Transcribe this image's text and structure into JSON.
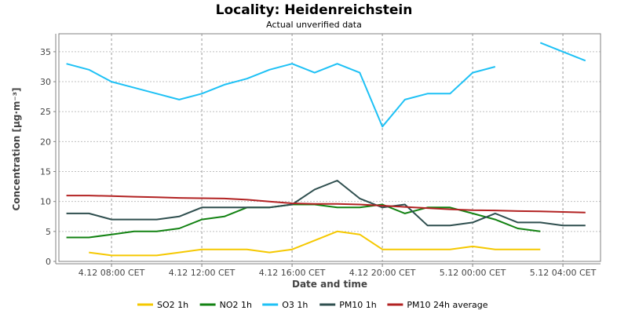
{
  "chart_data": {
    "type": "line",
    "title": "Locality: Heidenreichstein",
    "subtitle": "Actual unverified data",
    "xlabel": "Date and time",
    "ylabel": "Concentration [μg·m⁻³]",
    "ylim": [
      0,
      38
    ],
    "yticks": [
      0,
      5,
      10,
      15,
      20,
      25,
      30,
      35
    ],
    "xlim": [
      "4.12 05:40",
      "5.12 05:40"
    ],
    "xticks": [
      {
        "time": "4.12 08:00",
        "label": "4.12 08:00 CET"
      },
      {
        "time": "4.12 12:00",
        "label": "4.12 12:00 CET"
      },
      {
        "time": "4.12 16:00",
        "label": "4.12 16:00 CET"
      },
      {
        "time": "4.12 20:00",
        "label": "4.12 20:00 CET"
      },
      {
        "time": "5.12 00:00",
        "label": "5.12 00:00 CET"
      },
      {
        "time": "5.12 04:00",
        "label": "5.12 04:00 CET"
      }
    ],
    "grid": true,
    "legend_position": "bottom",
    "series": [
      {
        "name": "SO2 1h",
        "color": "#f5c800",
        "points": [
          {
            "x": "4.12 07:00",
            "y": 1.5
          },
          {
            "x": "4.12 08:00",
            "y": 1.0
          },
          {
            "x": "4.12 09:00",
            "y": 1.0
          },
          {
            "x": "4.12 10:00",
            "y": 1.0
          },
          {
            "x": "4.12 11:00",
            "y": 1.5
          },
          {
            "x": "4.12 12:00",
            "y": 2.0
          },
          {
            "x": "4.12 13:00",
            "y": 2.0
          },
          {
            "x": "4.12 14:00",
            "y": 2.0
          },
          {
            "x": "4.12 15:00",
            "y": 1.5
          },
          {
            "x": "4.12 16:00",
            "y": 2.0
          },
          {
            "x": "4.12 17:00",
            "y": 3.5
          },
          {
            "x": "4.12 18:00",
            "y": 5.0
          },
          {
            "x": "4.12 19:00",
            "y": 4.5
          },
          {
            "x": "4.12 20:00",
            "y": 2.0
          },
          {
            "x": "4.12 21:00",
            "y": 2.0
          },
          {
            "x": "4.12 22:00",
            "y": 2.0
          },
          {
            "x": "4.12 23:00",
            "y": 2.0
          },
          {
            "x": "5.12 00:00",
            "y": 2.5
          },
          {
            "x": "5.12 01:00",
            "y": 2.0
          },
          {
            "x": "5.12 02:00",
            "y": 2.0
          },
          {
            "x": "5.12 03:00",
            "y": 2.0
          }
        ]
      },
      {
        "name": "NO2 1h",
        "color": "#128212",
        "points": [
          {
            "x": "4.12 06:00",
            "y": 4.0
          },
          {
            "x": "4.12 07:00",
            "y": 4.0
          },
          {
            "x": "4.12 08:00",
            "y": 4.5
          },
          {
            "x": "4.12 09:00",
            "y": 5.0
          },
          {
            "x": "4.12 10:00",
            "y": 5.0
          },
          {
            "x": "4.12 11:00",
            "y": 5.5
          },
          {
            "x": "4.12 12:00",
            "y": 7.0
          },
          {
            "x": "4.12 13:00",
            "y": 7.5
          },
          {
            "x": "4.12 14:00",
            "y": 9.0
          },
          {
            "x": "4.12 15:00",
            "y": 9.0
          },
          {
            "x": "4.12 16:00",
            "y": 9.5
          },
          {
            "x": "4.12 17:00",
            "y": 9.5
          },
          {
            "x": "4.12 18:00",
            "y": 9.0
          },
          {
            "x": "4.12 19:00",
            "y": 9.0
          },
          {
            "x": "4.12 20:00",
            "y": 9.5
          },
          {
            "x": "4.12 21:00",
            "y": 8.0
          },
          {
            "x": "4.12 22:00",
            "y": 9.0
          },
          {
            "x": "4.12 23:00",
            "y": 9.0
          },
          {
            "x": "5.12 00:00",
            "y": 8.0
          },
          {
            "x": "5.12 01:00",
            "y": 7.0
          },
          {
            "x": "5.12 02:00",
            "y": 5.5
          },
          {
            "x": "5.12 03:00",
            "y": 5.0
          }
        ]
      },
      {
        "name": "O3 1h",
        "color": "#1ec1f5",
        "points": [
          {
            "x": "4.12 06:00",
            "y": 33.0
          },
          {
            "x": "4.12 07:00",
            "y": 32.0
          },
          {
            "x": "4.12 08:00",
            "y": 30.0
          },
          {
            "x": "4.12 09:00",
            "y": 29.0
          },
          {
            "x": "4.12 10:00",
            "y": 28.0
          },
          {
            "x": "4.12 11:00",
            "y": 27.0
          },
          {
            "x": "4.12 12:00",
            "y": 28.0
          },
          {
            "x": "4.12 13:00",
            "y": 29.5
          },
          {
            "x": "4.12 14:00",
            "y": 30.5
          },
          {
            "x": "4.12 15:00",
            "y": 32.0
          },
          {
            "x": "4.12 16:00",
            "y": 33.0
          },
          {
            "x": "4.12 17:00",
            "y": 31.5
          },
          {
            "x": "4.12 18:00",
            "y": 33.0
          },
          {
            "x": "4.12 19:00",
            "y": 31.5
          },
          {
            "x": "4.12 20:00",
            "y": 22.5
          },
          {
            "x": "4.12 21:00",
            "y": 27.0
          },
          {
            "x": "4.12 22:00",
            "y": 28.0
          },
          {
            "x": "4.12 23:00",
            "y": 28.0
          },
          {
            "x": "5.12 00:00",
            "y": 31.5
          },
          {
            "x": "5.12 01:00",
            "y": 32.5
          },
          {
            "x": "5.12 02:00",
            "y": null
          },
          {
            "x": "5.12 03:00",
            "y": 36.5
          },
          {
            "x": "5.12 04:00",
            "y": 35.0
          },
          {
            "x": "5.12 05:00",
            "y": 33.5
          }
        ]
      },
      {
        "name": "PM10 1h",
        "color": "#2f4f4f",
        "points": [
          {
            "x": "4.12 06:00",
            "y": 8.0
          },
          {
            "x": "4.12 07:00",
            "y": 8.0
          },
          {
            "x": "4.12 08:00",
            "y": 7.0
          },
          {
            "x": "4.12 09:00",
            "y": 7.0
          },
          {
            "x": "4.12 10:00",
            "y": 7.0
          },
          {
            "x": "4.12 11:00",
            "y": 7.5
          },
          {
            "x": "4.12 12:00",
            "y": 9.0
          },
          {
            "x": "4.12 13:00",
            "y": 9.0
          },
          {
            "x": "4.12 14:00",
            "y": 9.0
          },
          {
            "x": "4.12 15:00",
            "y": 9.0
          },
          {
            "x": "4.12 16:00",
            "y": 9.5
          },
          {
            "x": "4.12 17:00",
            "y": 12.0
          },
          {
            "x": "4.12 18:00",
            "y": 13.5
          },
          {
            "x": "4.12 19:00",
            "y": 10.5
          },
          {
            "x": "4.12 20:00",
            "y": 9.0
          },
          {
            "x": "4.12 21:00",
            "y": 9.5
          },
          {
            "x": "4.12 22:00",
            "y": 6.0
          },
          {
            "x": "4.12 23:00",
            "y": 6.0
          },
          {
            "x": "5.12 00:00",
            "y": 6.5
          },
          {
            "x": "5.12 01:00",
            "y": 8.0
          },
          {
            "x": "5.12 02:00",
            "y": 6.5
          },
          {
            "x": "5.12 03:00",
            "y": 6.5
          },
          {
            "x": "5.12 04:00",
            "y": 6.0
          },
          {
            "x": "5.12 05:00",
            "y": 6.0
          }
        ]
      },
      {
        "name": "PM10 24h average",
        "color": "#b22222",
        "points": [
          {
            "x": "4.12 06:00",
            "y": 11.0
          },
          {
            "x": "4.12 07:00",
            "y": 11.0
          },
          {
            "x": "4.12 08:00",
            "y": 10.9
          },
          {
            "x": "4.12 09:00",
            "y": 10.8
          },
          {
            "x": "4.12 10:00",
            "y": 10.7
          },
          {
            "x": "4.12 11:00",
            "y": 10.6
          },
          {
            "x": "4.12 12:00",
            "y": 10.55
          },
          {
            "x": "4.12 13:00",
            "y": 10.5
          },
          {
            "x": "4.12 14:00",
            "y": 10.3
          },
          {
            "x": "4.12 15:00",
            "y": 10.0
          },
          {
            "x": "4.12 16:00",
            "y": 9.7
          },
          {
            "x": "4.12 17:00",
            "y": 9.6
          },
          {
            "x": "4.12 18:00",
            "y": 9.6
          },
          {
            "x": "4.12 19:00",
            "y": 9.5
          },
          {
            "x": "4.12 20:00",
            "y": 9.3
          },
          {
            "x": "4.12 21:00",
            "y": 9.1
          },
          {
            "x": "4.12 22:00",
            "y": 8.9
          },
          {
            "x": "4.12 23:00",
            "y": 8.7
          },
          {
            "x": "5.12 00:00",
            "y": 8.55
          },
          {
            "x": "5.12 01:00",
            "y": 8.5
          },
          {
            "x": "5.12 02:00",
            "y": 8.4
          },
          {
            "x": "5.12 03:00",
            "y": 8.35
          },
          {
            "x": "5.12 04:00",
            "y": 8.25
          },
          {
            "x": "5.12 05:00",
            "y": 8.15
          }
        ]
      }
    ]
  }
}
